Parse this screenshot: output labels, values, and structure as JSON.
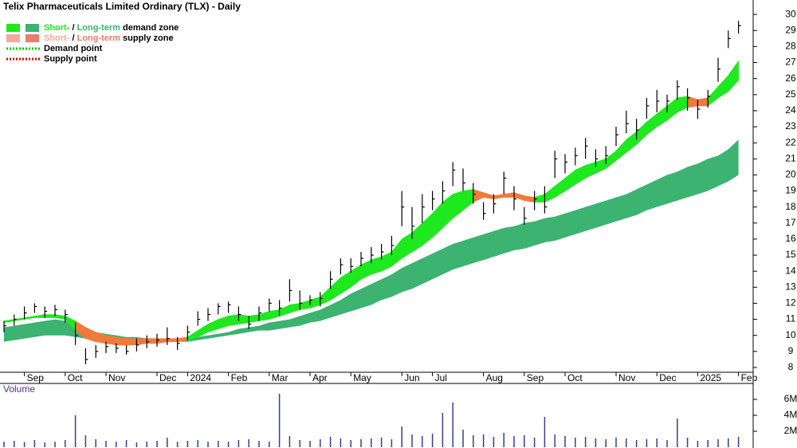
{
  "chart_data": {
    "type": "ohlc",
    "title": "Telix Pharmaceuticals Limited Ordinary (TLX) - Daily",
    "categories": [
      null,
      null,
      "Sep",
      null,
      null,
      null,
      "Oct",
      null,
      null,
      null,
      "Nov",
      null,
      null,
      null,
      null,
      "Dec",
      null,
      null,
      "2024",
      null,
      null,
      null,
      "Feb",
      null,
      null,
      null,
      "Mar",
      null,
      null,
      null,
      "Apr",
      null,
      null,
      null,
      "May",
      null,
      null,
      null,
      null,
      "Jun",
      null,
      null,
      "Jul",
      null,
      null,
      null,
      null,
      "Aug",
      null,
      null,
      null,
      "Sep",
      null,
      null,
      null,
      "Oct",
      null,
      null,
      null,
      null,
      "Nov",
      null,
      null,
      null,
      "Dec",
      null,
      null,
      null,
      "2025",
      null,
      null,
      null,
      "Feb"
    ],
    "high": [
      10.9,
      11.3,
      11.8,
      12.0,
      11.8,
      11.9,
      11.6,
      10.8,
      9.2,
      9.4,
      9.6,
      9.5,
      9.4,
      9.8,
      10.0,
      10.1,
      10.5,
      9.9,
      10.6,
      11.5,
      11.7,
      12.0,
      12.1,
      11.8,
      11.2,
      11.8,
      12.3,
      12.2,
      13.5,
      12.8,
      12.5,
      12.7,
      14.0,
      14.8,
      14.8,
      15.2,
      15.5,
      15.7,
      16.2,
      19.0,
      18.0,
      18.8,
      19.0,
      19.6,
      20.8,
      20.4,
      19.5,
      18.3,
      18.8,
      20.2,
      19.3,
      18.0,
      19.0,
      19.3,
      21.5,
      21.3,
      21.7,
      22.3,
      21.6,
      21.8,
      23.0,
      24.0,
      23.5,
      24.8,
      25.3,
      25.0,
      25.9,
      25.4,
      24.7,
      25.3,
      27.3,
      29.0,
      29.6
    ],
    "low": [
      10.2,
      10.6,
      11.0,
      11.4,
      11.1,
      11.2,
      10.8,
      9.4,
      8.2,
      8.6,
      8.9,
      8.9,
      8.8,
      9.0,
      9.2,
      9.3,
      9.4,
      9.1,
      9.7,
      10.6,
      10.9,
      11.3,
      11.4,
      10.9,
      10.4,
      10.9,
      11.5,
      11.2,
      12.1,
      11.6,
      11.9,
      11.8,
      12.9,
      13.8,
      13.9,
      14.3,
      14.5,
      14.7,
      15.0,
      16.8,
      16.0,
      17.0,
      17.8,
      18.2,
      19.3,
      19.0,
      18.2,
      17.2,
      17.6,
      18.8,
      17.8,
      16.9,
      17.8,
      17.6,
      19.8,
      20.1,
      20.6,
      21.0,
      20.5,
      20.7,
      21.8,
      22.6,
      22.2,
      23.5,
      23.9,
      23.9,
      24.7,
      24.0,
      23.5,
      24.2,
      25.8,
      27.9,
      28.8
    ],
    "close": [
      10.6,
      11.0,
      11.4,
      11.8,
      11.5,
      11.6,
      11.3,
      10.0,
      8.5,
      9.0,
      9.3,
      9.2,
      9.0,
      9.4,
      9.6,
      9.7,
      9.8,
      9.5,
      10.2,
      11.0,
      11.3,
      11.8,
      11.9,
      11.3,
      10.7,
      11.4,
      12.0,
      11.7,
      12.8,
      12.0,
      12.2,
      12.3,
      13.5,
      14.4,
      14.3,
      14.8,
      15.0,
      15.2,
      15.6,
      18.0,
      16.8,
      18.0,
      18.5,
      19.0,
      20.3,
      19.5,
      18.8,
      17.6,
      18.2,
      19.8,
      18.5,
      17.3,
      18.5,
      18.0,
      21.0,
      20.8,
      21.2,
      21.8,
      21.0,
      21.2,
      22.5,
      23.2,
      22.8,
      24.3,
      24.6,
      24.6,
      25.5,
      24.8,
      24.1,
      24.9,
      26.6,
      28.5,
      29.3
    ],
    "bar_color": "#000000",
    "short_term_upper": [
      10.9,
      11.0,
      11.1,
      11.2,
      11.3,
      11.3,
      11.2,
      10.9,
      10.5,
      10.2,
      10.0,
      9.9,
      9.8,
      9.8,
      9.8,
      9.8,
      9.8,
      9.8,
      9.9,
      10.3,
      10.7,
      11.0,
      11.2,
      11.3,
      11.2,
      11.3,
      11.5,
      11.6,
      11.9,
      12.0,
      12.2,
      12.4,
      13.0,
      13.6,
      14.0,
      14.4,
      14.7,
      14.9,
      15.2,
      16.0,
      16.4,
      17.0,
      17.6,
      18.3,
      18.8,
      19.0,
      19.1,
      18.9,
      18.7,
      18.8,
      18.9,
      18.7,
      18.6,
      18.8,
      19.3,
      19.8,
      20.3,
      20.6,
      20.8,
      21.0,
      21.5,
      22.2,
      22.7,
      23.3,
      23.8,
      24.3,
      24.8,
      24.9,
      24.7,
      24.8,
      25.5,
      26.2,
      27.1
    ],
    "short_term_lower": [
      10.8,
      10.9,
      11.0,
      11.1,
      11.1,
      11.1,
      11.0,
      10.3,
      9.8,
      9.6,
      9.5,
      9.4,
      9.4,
      9.4,
      9.5,
      9.5,
      9.6,
      9.6,
      9.7,
      9.9,
      10.2,
      10.4,
      10.6,
      10.7,
      10.8,
      10.9,
      11.0,
      11.2,
      11.4,
      11.6,
      11.7,
      11.9,
      12.2,
      12.6,
      13.0,
      13.5,
      13.8,
      14.0,
      14.3,
      14.8,
      15.2,
      15.6,
      16.1,
      16.7,
      17.3,
      17.8,
      18.3,
      18.6,
      18.5,
      18.6,
      18.6,
      18.4,
      18.3,
      18.3,
      18.6,
      19.0,
      19.4,
      19.8,
      20.1,
      20.4,
      20.9,
      21.4,
      21.9,
      22.5,
      23.0,
      23.4,
      23.9,
      24.2,
      24.3,
      24.3,
      24.8,
      25.2,
      25.9
    ],
    "supply_ranges": [
      [
        7,
        18
      ],
      [
        46,
        52
      ],
      [
        67,
        69
      ]
    ],
    "long_term_upper": [
      10.5,
      10.6,
      10.7,
      10.8,
      10.9,
      11.0,
      10.9,
      10.6,
      10.4,
      10.2,
      10.1,
      10.0,
      9.9,
      9.9,
      9.8,
      9.8,
      9.8,
      9.8,
      9.8,
      9.9,
      10.0,
      10.1,
      10.2,
      10.4,
      10.5,
      10.6,
      10.8,
      10.9,
      11.0,
      11.2,
      11.4,
      11.6,
      11.9,
      12.2,
      12.6,
      12.9,
      13.2,
      13.5,
      13.8,
      14.2,
      14.5,
      14.8,
      15.1,
      15.4,
      15.7,
      15.9,
      16.1,
      16.3,
      16.5,
      16.7,
      16.8,
      17.0,
      17.1,
      17.3,
      17.4,
      17.6,
      17.8,
      18.0,
      18.2,
      18.4,
      18.6,
      18.8,
      19.1,
      19.4,
      19.7,
      20.0,
      20.2,
      20.5,
      20.7,
      21.0,
      21.2,
      21.6,
      22.2
    ],
    "long_term_lower": [
      9.6,
      9.7,
      9.8,
      9.9,
      10.0,
      10.0,
      10.0,
      9.9,
      9.8,
      9.7,
      9.7,
      9.6,
      9.6,
      9.6,
      9.6,
      9.6,
      9.6,
      9.6,
      9.6,
      9.7,
      9.8,
      9.9,
      10.0,
      10.1,
      10.2,
      10.3,
      10.3,
      10.4,
      10.5,
      10.6,
      10.8,
      10.9,
      11.1,
      11.3,
      11.5,
      11.7,
      11.9,
      12.2,
      12.4,
      12.7,
      12.9,
      13.2,
      13.5,
      13.8,
      14.1,
      14.3,
      14.5,
      14.7,
      14.9,
      15.1,
      15.3,
      15.4,
      15.6,
      15.8,
      15.9,
      16.1,
      16.3,
      16.5,
      16.7,
      16.9,
      17.1,
      17.3,
      17.5,
      17.8,
      18.0,
      18.2,
      18.4,
      18.6,
      18.8,
      19.0,
      19.3,
      19.6,
      20.0
    ],
    "colors": {
      "short_demand": "#1ee81e",
      "long_demand": "#3cb371",
      "short_supply": "#f2a9a0",
      "long_supply": "#f07a3c"
    },
    "ylim": [
      7.7,
      30.9
    ],
    "yticks": [
      8,
      9,
      10,
      11,
      12,
      13,
      14,
      15,
      16,
      17,
      18,
      19,
      20,
      21,
      22,
      23,
      24,
      25,
      26,
      27,
      28,
      29,
      30
    ],
    "volume_label": "Volume",
    "volume": [
      700000,
      800000,
      650000,
      900000,
      600000,
      700000,
      900000,
      4000000,
      1500000,
      1000000,
      800000,
      700000,
      900000,
      600000,
      700000,
      800000,
      1200000,
      700000,
      800000,
      900000,
      700000,
      800000,
      700000,
      900000,
      1000000,
      800000,
      700000,
      6700000,
      1400000,
      900000,
      800000,
      1000000,
      1300000,
      1100000,
      900000,
      1000000,
      1100000,
      1200000,
      1000000,
      2600000,
      1600000,
      1400000,
      1700000,
      4300000,
      5600000,
      2200000,
      1500000,
      1600000,
      1300000,
      1800000,
      1400000,
      1500000,
      1200000,
      3800000,
      1600000,
      1400000,
      1200000,
      1300000,
      1100000,
      1000000,
      1200000,
      1100000,
      900000,
      1000000,
      1100000,
      900000,
      3600000,
      1200000,
      800000,
      900000,
      1000000,
      1100000,
      1300000
    ],
    "volume_color": "#3c3c8c",
    "vlim": [
      0,
      8000000
    ],
    "vticks": [
      {
        "value": 2000000,
        "label": "2M"
      },
      {
        "value": 4000000,
        "label": "4M"
      },
      {
        "value": 6000000,
        "label": "6M"
      }
    ],
    "legend": [
      {
        "short": "Short-",
        "sep": " / ",
        "long": "Long-term",
        "rest": " demand zone",
        "swatch_short": "#1ee81e",
        "swatch_long": "#3cb371"
      },
      {
        "short": "Short-",
        "sep": " / ",
        "long": "Long-term",
        "rest": " supply zone",
        "swatch_short": "#f2a9a0",
        "swatch_long": "#f07a6a"
      }
    ],
    "points": [
      {
        "label": "Demand point",
        "color": "#00cc00"
      },
      {
        "label": "Supply point",
        "color": "#dd0000"
      }
    ]
  }
}
